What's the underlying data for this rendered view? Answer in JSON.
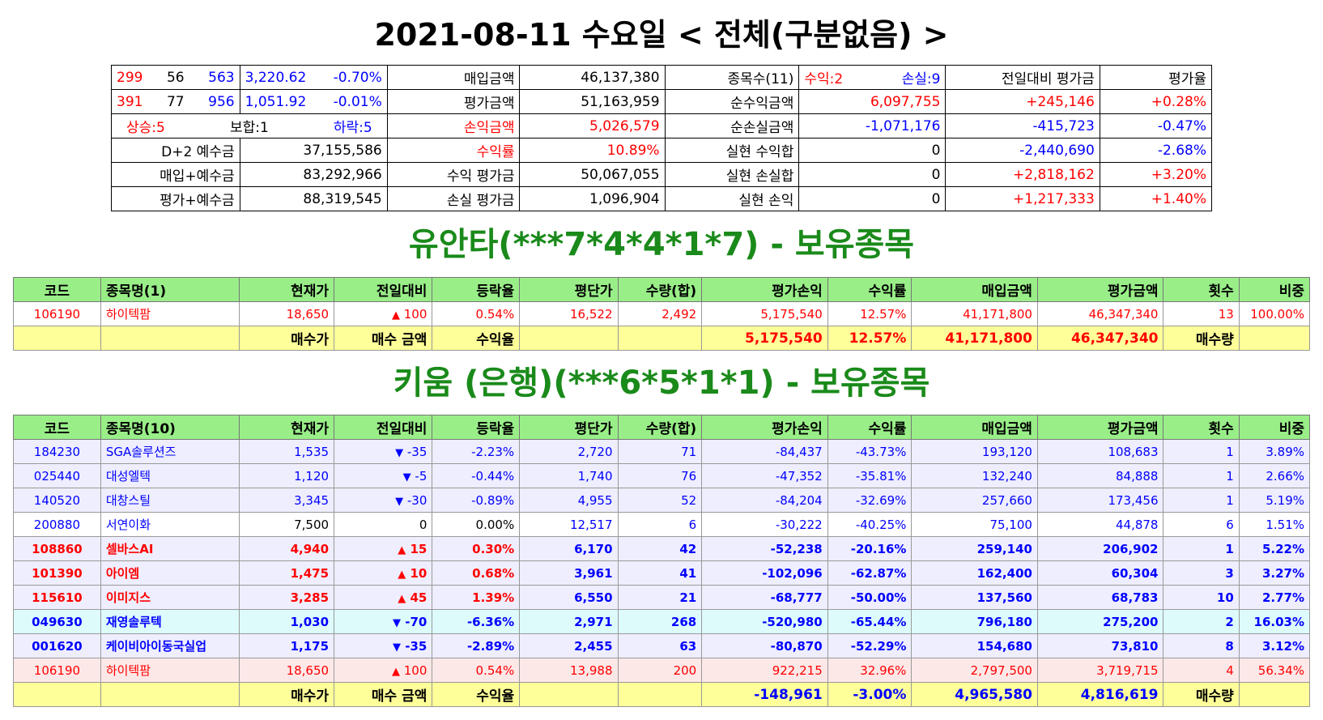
{
  "header": {
    "title": "2021-08-11 수요일 < 전체(구분없음) >"
  },
  "summary": {
    "row1": {
      "a": "299",
      "b": "56",
      "c": "563",
      "idx": "3,220.62",
      "pct": "-0.70%",
      "l1": "매입금액",
      "v1": "46,137,380",
      "l2": "종목수(11)",
      "win": "수익:2",
      "loss": "손실:9",
      "l3": "전일대비 평가금",
      "l4": "평가율"
    },
    "row2": {
      "a": "391",
      "b": "77",
      "c": "956",
      "idx": "1,051.92",
      "pct": "-0.01%",
      "l1": "평가금액",
      "v1": "51,163,959",
      "l2": "순수익금액",
      "v2": "6,097,755",
      "v3": "+245,146",
      "v4": "+0.28%"
    },
    "row3": {
      "up": "상승:5",
      "flat": "보합:1",
      "down": "하락:5",
      "l1": "손익금액",
      "v1": "5,026,579",
      "l2": "순손실금액",
      "v2": "-1,071,176",
      "v3": "-415,723",
      "v4": "-0.47%"
    },
    "row4": {
      "l0": "D+2 예수금",
      "v0": "37,155,586",
      "l1": "수익률",
      "v1": "10.89%",
      "l2": "실현 수익합",
      "v2": "0",
      "v3": "-2,440,690",
      "v4": "-2.68%"
    },
    "row5": {
      "l0": "매입+예수금",
      "v0": "83,292,966",
      "l1": "수익 평가금",
      "v1": "50,067,055",
      "l2": "실현 손실합",
      "v2": "0",
      "v3": "+2,818,162",
      "v4": "+3.20%"
    },
    "row6": {
      "l0": "평가+예수금",
      "v0": "88,319,545",
      "l1": "손실 평가금",
      "v1": "1,096,904",
      "l2": "실현 손익",
      "v2": "0",
      "v3": "+1,217,333",
      "v4": "+1.40%"
    }
  },
  "yuanta": {
    "title": "유안타(***7*4*4*1*7) - 보유종목",
    "headers": [
      "코드",
      "종목명(1)",
      "현재가",
      "전일대비",
      "등락율",
      "평단가",
      "수량(합)",
      "평가손익",
      "수익률",
      "매입금액",
      "평가금액",
      "횟수",
      "비중"
    ],
    "rows": [
      {
        "code": "106190",
        "name": "하이텍팜",
        "price": "18,650",
        "arrow": "▲",
        "diff": "100",
        "rate": "0.54%",
        "avg": "16,522",
        "qty": "2,492",
        "pl": "5,175,540",
        "ret": "12.57%",
        "buy": "41,171,800",
        "eval": "46,347,340",
        "cnt": "13",
        "weight": "100.00%"
      }
    ],
    "footer": {
      "buy_price": "매수가",
      "buy_amount": "매수 금액",
      "ret_label": "수익율",
      "pl": "5,175,540",
      "ret": "12.57%",
      "buy": "41,171,800",
      "eval": "46,347,340",
      "qty_label": "매수량"
    }
  },
  "kiwoom": {
    "title": "키움 (은행)(***6*5*1*1) - 보유종목",
    "headers": [
      "코드",
      "종목명(10)",
      "현재가",
      "전일대비",
      "등락율",
      "평단가",
      "수량(합)",
      "평가손익",
      "수익률",
      "매입금액",
      "평가금액",
      "횟수",
      "비중"
    ],
    "rows": [
      {
        "code": "184230",
        "name": "SGA솔루션즈",
        "price": "1,535",
        "arrow": "▼",
        "diff": "-35",
        "rate": "-2.23%",
        "avg": "2,720",
        "qty": "71",
        "pl": "-84,437",
        "ret": "-43.73%",
        "buy": "193,120",
        "eval": "108,683",
        "cnt": "1",
        "weight": "3.89%"
      },
      {
        "code": "025440",
        "name": "대성엘텍",
        "price": "1,120",
        "arrow": "▼",
        "diff": "-5",
        "rate": "-0.44%",
        "avg": "1,740",
        "qty": "76",
        "pl": "-47,352",
        "ret": "-35.81%",
        "buy": "132,240",
        "eval": "84,888",
        "cnt": "1",
        "weight": "2.66%"
      },
      {
        "code": "140520",
        "name": "대창스틸",
        "price": "3,345",
        "arrow": "▼",
        "diff": "-30",
        "rate": "-0.89%",
        "avg": "4,955",
        "qty": "52",
        "pl": "-84,204",
        "ret": "-32.69%",
        "buy": "257,660",
        "eval": "173,456",
        "cnt": "1",
        "weight": "5.19%"
      },
      {
        "code": "200880",
        "name": "서연이화",
        "price": "7,500",
        "arrow": "",
        "diff": "0",
        "rate": "0.00%",
        "avg": "12,517",
        "qty": "6",
        "pl": "-30,222",
        "ret": "-40.25%",
        "buy": "75,100",
        "eval": "44,878",
        "cnt": "6",
        "weight": "1.51%"
      },
      {
        "code": "108860",
        "name": "셀바스AI",
        "price": "4,940",
        "arrow": "▲",
        "diff": "15",
        "rate": "0.30%",
        "avg": "6,170",
        "qty": "42",
        "pl": "-52,238",
        "ret": "-20.16%",
        "buy": "259,140",
        "eval": "206,902",
        "cnt": "1",
        "weight": "5.22%"
      },
      {
        "code": "101390",
        "name": "아이엠",
        "price": "1,475",
        "arrow": "▲",
        "diff": "10",
        "rate": "0.68%",
        "avg": "3,961",
        "qty": "41",
        "pl": "-102,096",
        "ret": "-62.87%",
        "buy": "162,400",
        "eval": "60,304",
        "cnt": "3",
        "weight": "3.27%"
      },
      {
        "code": "115610",
        "name": "이미지스",
        "price": "3,285",
        "arrow": "▲",
        "diff": "45",
        "rate": "1.39%",
        "avg": "6,550",
        "qty": "21",
        "pl": "-68,777",
        "ret": "-50.00%",
        "buy": "137,560",
        "eval": "68,783",
        "cnt": "10",
        "weight": "2.77%"
      },
      {
        "code": "049630",
        "name": "재영솔루텍",
        "price": "1,030",
        "arrow": "▼",
        "diff": "-70",
        "rate": "-6.36%",
        "avg": "2,971",
        "qty": "268",
        "pl": "-520,980",
        "ret": "-65.44%",
        "buy": "796,180",
        "eval": "275,200",
        "cnt": "2",
        "weight": "16.03%"
      },
      {
        "code": "001620",
        "name": "케이비아이동국실업",
        "price": "1,175",
        "arrow": "▼",
        "diff": "-35",
        "rate": "-2.89%",
        "avg": "2,455",
        "qty": "63",
        "pl": "-80,870",
        "ret": "-52.29%",
        "buy": "154,680",
        "eval": "73,810",
        "cnt": "8",
        "weight": "3.12%"
      },
      {
        "code": "106190",
        "name": "하이텍팜",
        "price": "18,650",
        "arrow": "▲",
        "diff": "100",
        "rate": "0.54%",
        "avg": "13,988",
        "qty": "200",
        "pl": "922,215",
        "ret": "32.96%",
        "buy": "2,797,500",
        "eval": "3,719,715",
        "cnt": "4",
        "weight": "56.34%"
      }
    ],
    "footer": {
      "buy_price": "매수가",
      "buy_amount": "매수 금액",
      "ret_label": "수익율",
      "pl": "-148,961",
      "ret": "-3.00%",
      "buy": "4,965,580",
      "eval": "4,816,619",
      "qty_label": "매수량"
    }
  },
  "colors": {
    "header_green": "#99ee88",
    "footer_yellow": "#ffff99",
    "title_green": "#1a8a1a",
    "up_red": "#ff0000",
    "down_blue": "#0000ff"
  }
}
